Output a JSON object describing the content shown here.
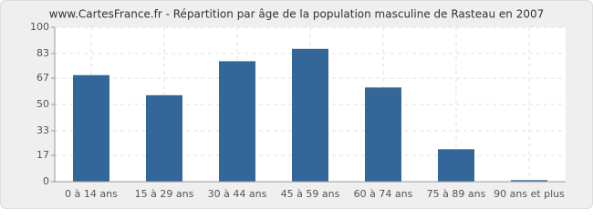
{
  "chart_data": {
    "type": "bar",
    "title": "www.CartesFrance.fr - Répartition par âge de la population masculine de Rasteau en 2007",
    "categories": [
      "0 à 14 ans",
      "15 à 29 ans",
      "30 à 44 ans",
      "45 à 59 ans",
      "60 à 74 ans",
      "75 à 89 ans",
      "90 ans et plus"
    ],
    "values": [
      69,
      56,
      78,
      86,
      61,
      21,
      1
    ],
    "color": "#336699",
    "ylim": [
      0,
      100
    ],
    "yticks": [
      0,
      17,
      33,
      50,
      67,
      83,
      100
    ],
    "grid": true
  }
}
